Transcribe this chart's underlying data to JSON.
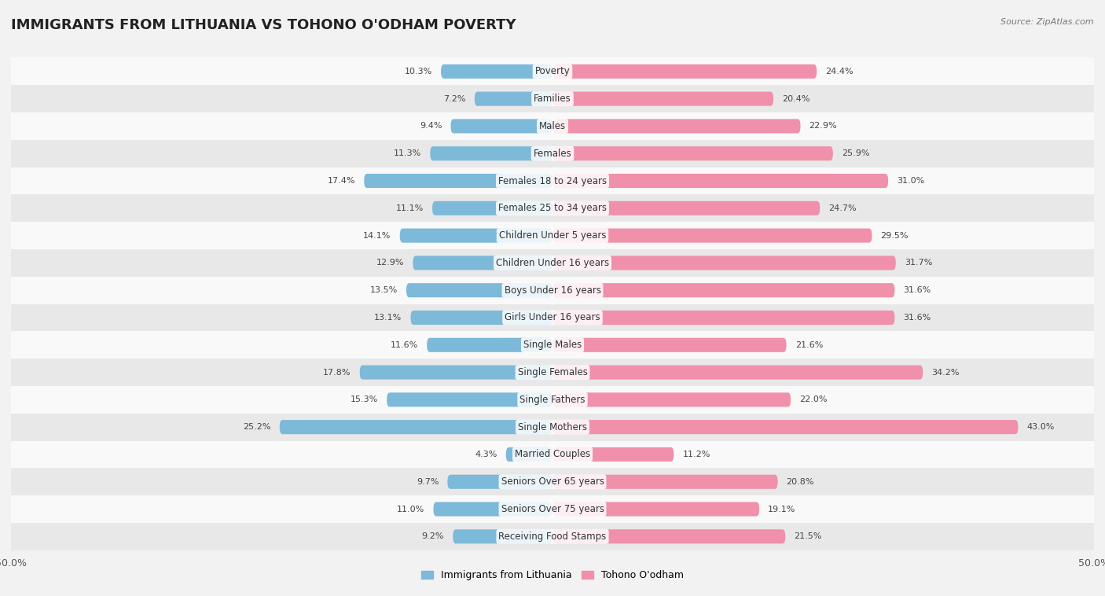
{
  "title": "IMMIGRANTS FROM LITHUANIA VS TOHONO O'ODHAM POVERTY",
  "source": "Source: ZipAtlas.com",
  "categories": [
    "Poverty",
    "Families",
    "Males",
    "Females",
    "Females 18 to 24 years",
    "Females 25 to 34 years",
    "Children Under 5 years",
    "Children Under 16 years",
    "Boys Under 16 years",
    "Girls Under 16 years",
    "Single Males",
    "Single Females",
    "Single Fathers",
    "Single Mothers",
    "Married Couples",
    "Seniors Over 65 years",
    "Seniors Over 75 years",
    "Receiving Food Stamps"
  ],
  "left_values": [
    10.3,
    7.2,
    9.4,
    11.3,
    17.4,
    11.1,
    14.1,
    12.9,
    13.5,
    13.1,
    11.6,
    17.8,
    15.3,
    25.2,
    4.3,
    9.7,
    11.0,
    9.2
  ],
  "right_values": [
    24.4,
    20.4,
    22.9,
    25.9,
    31.0,
    24.7,
    29.5,
    31.7,
    31.6,
    31.6,
    21.6,
    34.2,
    22.0,
    43.0,
    11.2,
    20.8,
    19.1,
    21.5
  ],
  "left_color": "#7db9d9",
  "right_color": "#f090aa",
  "axis_max": 50.0,
  "legend_left": "Immigrants from Lithuania",
  "legend_right": "Tohono O'odham",
  "background_color": "#f2f2f2",
  "row_bg_light": "#f9f9f9",
  "row_bg_dark": "#e8e8e8",
  "title_fontsize": 13,
  "label_fontsize": 8.5,
  "value_fontsize": 8.0
}
